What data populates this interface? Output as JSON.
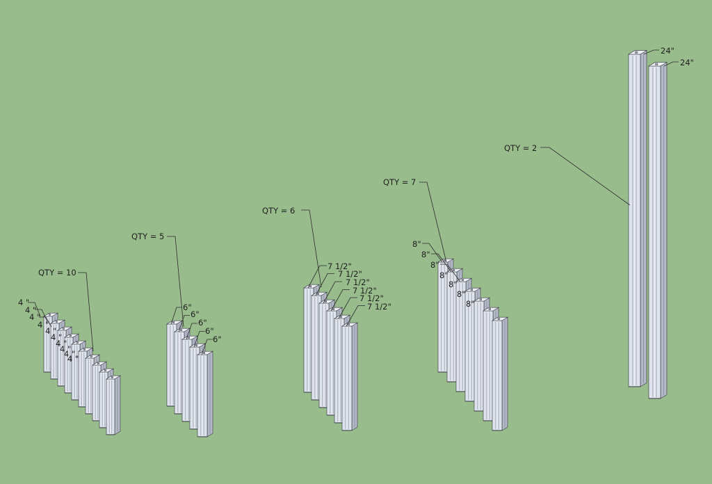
{
  "groups": [
    {
      "qty_label": "QTY = 10",
      "length_labels": [
        "4 \"",
        "4 \"",
        "4 \"",
        "4 \"",
        "4 \"",
        "4 \"",
        "4 \"",
        "4 \"",
        "4 \"",
        "4 \""
      ]
    },
    {
      "qty_label": "QTY = 5",
      "length_labels": [
        "6\"",
        "6\"",
        "6\"",
        "6\"",
        "6\""
      ]
    },
    {
      "qty_label": "QTY =  6",
      "length_labels": [
        "7 1/2\"",
        "7 1/2\"",
        "7 1/2\"",
        "7 1/2\"",
        "7 1/2\"",
        "7 1/2\""
      ]
    },
    {
      "qty_label": "QTY = 7",
      "length_labels": [
        "8\"",
        "8\"",
        "8\"",
        "8\"",
        "8\"",
        "8\"",
        "8\""
      ]
    },
    {
      "qty_label": "QTY = 2",
      "length_labels": [
        "24\"",
        "24\""
      ]
    }
  ],
  "colors": {
    "background": "#99bc8c",
    "bar_front": "#dfe3ec",
    "bar_side": "#b3b9c6",
    "bar_top": "#eef0f5",
    "edge": "#30343c"
  }
}
